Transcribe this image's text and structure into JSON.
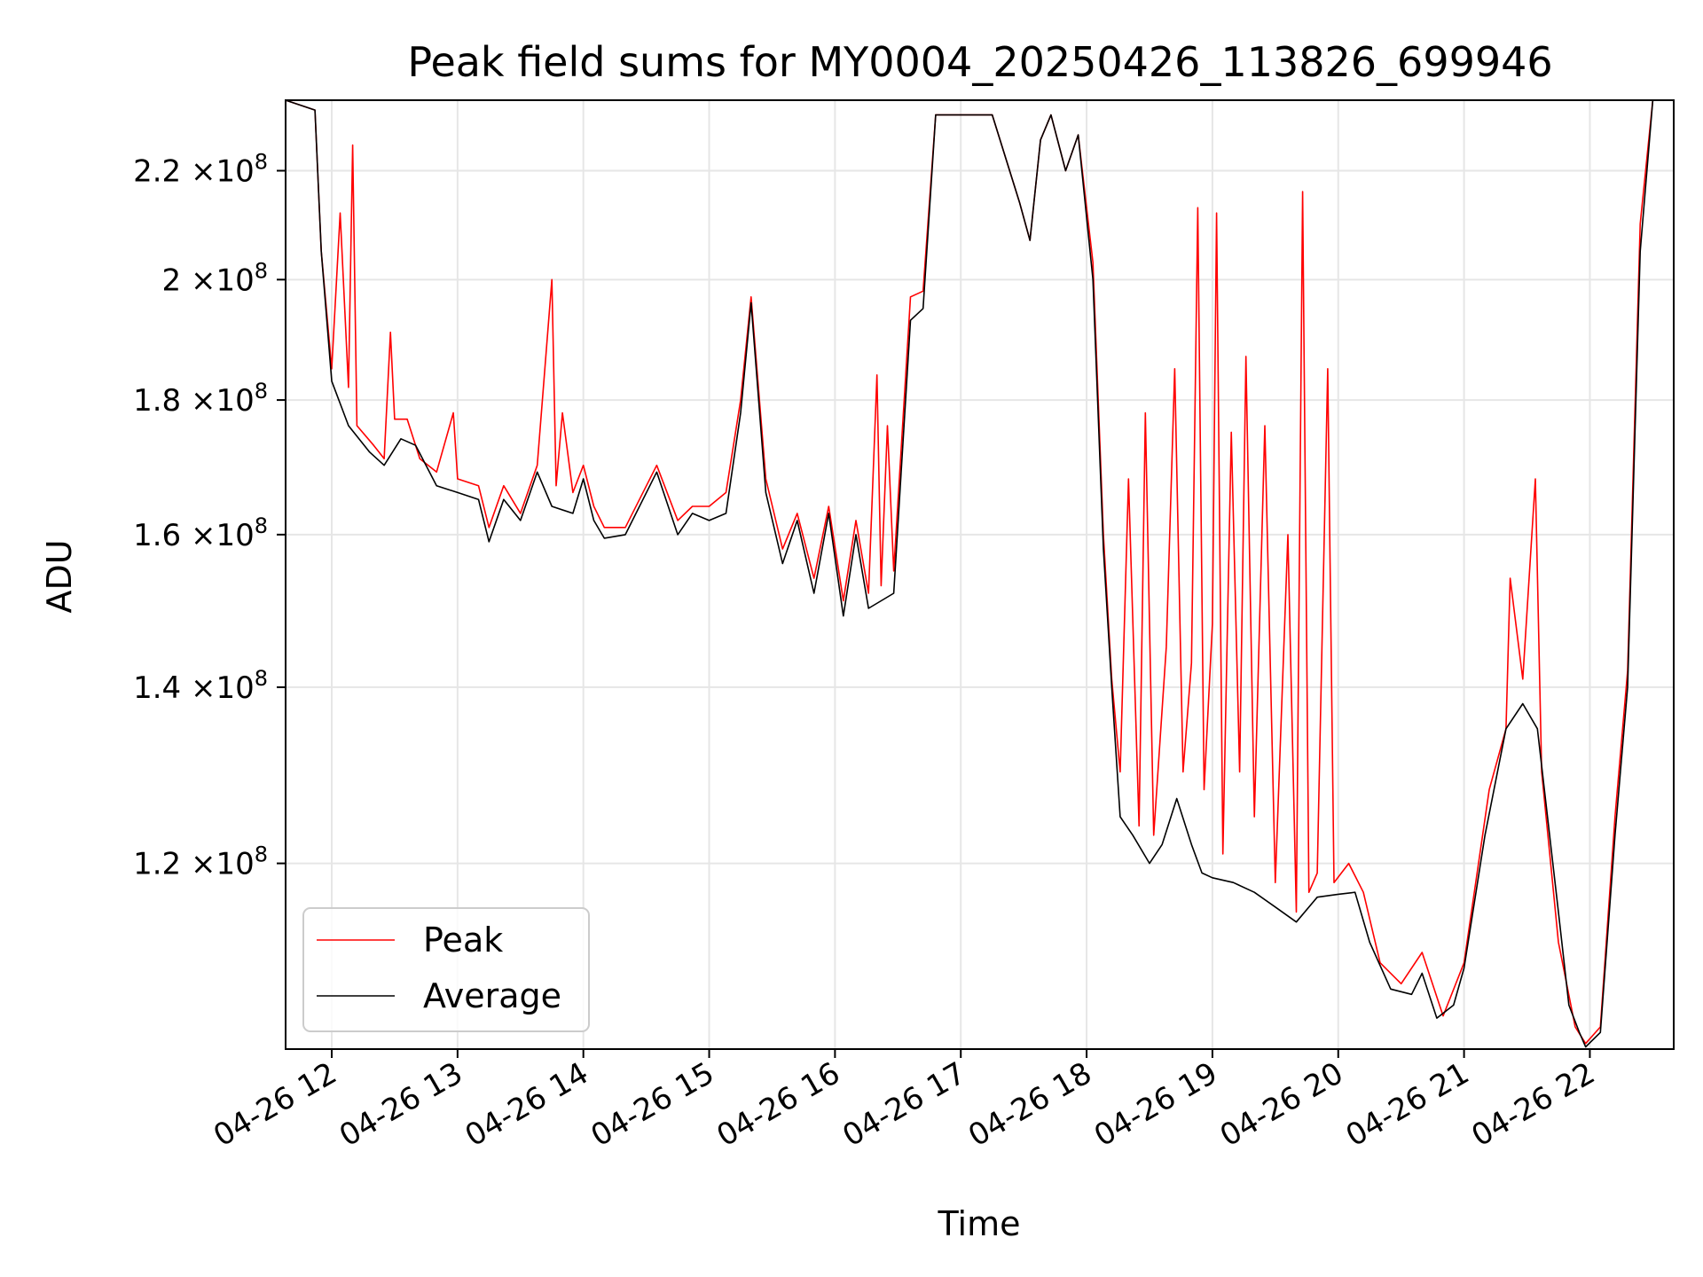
{
  "chart_data": {
    "type": "line",
    "title": "Peak field sums for MY0004_20250426_113826_699946",
    "xlabel": "Time",
    "ylabel": "ADU",
    "yscale": "log",
    "grid": true,
    "legend_position": "lower-left",
    "xlim": [
      "2025-04-26 11:38",
      "2025-04-26 22:40"
    ],
    "ylim": [
      102000000,
      234000000
    ],
    "x_ticks": [
      {
        "value": "2025-04-26 12:00",
        "label": "04-26 12"
      },
      {
        "value": "2025-04-26 13:00",
        "label": "04-26 13"
      },
      {
        "value": "2025-04-26 14:00",
        "label": "04-26 14"
      },
      {
        "value": "2025-04-26 15:00",
        "label": "04-26 15"
      },
      {
        "value": "2025-04-26 16:00",
        "label": "04-26 16"
      },
      {
        "value": "2025-04-26 17:00",
        "label": "04-26 17"
      },
      {
        "value": "2025-04-26 18:00",
        "label": "04-26 18"
      },
      {
        "value": "2025-04-26 19:00",
        "label": "04-26 19"
      },
      {
        "value": "2025-04-26 20:00",
        "label": "04-26 20"
      },
      {
        "value": "2025-04-26 21:00",
        "label": "04-26 21"
      },
      {
        "value": "2025-04-26 22:00",
        "label": "04-26 22"
      }
    ],
    "y_ticks": [
      {
        "value": 120000000,
        "mantissa": "1.2",
        "exponent": "8"
      },
      {
        "value": 140000000,
        "mantissa": "1.4",
        "exponent": "8"
      },
      {
        "value": 160000000,
        "mantissa": "1.6",
        "exponent": "8"
      },
      {
        "value": 180000000,
        "mantissa": "1.8",
        "exponent": "8"
      },
      {
        "value": 200000000,
        "mantissa": "2",
        "exponent": "8"
      },
      {
        "value": 220000000,
        "mantissa": "2.2",
        "exponent": "8"
      }
    ],
    "tick_times_label": "×10",
    "series": [
      {
        "name": "Peak",
        "color": "#ff0000",
        "points": [
          [
            "2025-04-26 11:38",
            234000000
          ],
          [
            "2025-04-26 11:52",
            232000000
          ],
          [
            "2025-04-26 11:55",
            205000000
          ],
          [
            "2025-04-26 12:00",
            185000000
          ],
          [
            "2025-04-26 12:04",
            212000000
          ],
          [
            "2025-04-26 12:08",
            182000000
          ],
          [
            "2025-04-26 12:10",
            225000000
          ],
          [
            "2025-04-26 12:12",
            176000000
          ],
          [
            "2025-04-26 12:20",
            173000000
          ],
          [
            "2025-04-26 12:25",
            171000000
          ],
          [
            "2025-04-26 12:28",
            191000000
          ],
          [
            "2025-04-26 12:30",
            177000000
          ],
          [
            "2025-04-26 12:36",
            177000000
          ],
          [
            "2025-04-26 12:42",
            171000000
          ],
          [
            "2025-04-26 12:50",
            169000000
          ],
          [
            "2025-04-26 12:58",
            178000000
          ],
          [
            "2025-04-26 13:00",
            168000000
          ],
          [
            "2025-04-26 13:10",
            167000000
          ],
          [
            "2025-04-26 13:15",
            161000000
          ],
          [
            "2025-04-26 13:22",
            167000000
          ],
          [
            "2025-04-26 13:30",
            163000000
          ],
          [
            "2025-04-26 13:38",
            170000000
          ],
          [
            "2025-04-26 13:45",
            200000000
          ],
          [
            "2025-04-26 13:47",
            167000000
          ],
          [
            "2025-04-26 13:50",
            178000000
          ],
          [
            "2025-04-26 13:55",
            166000000
          ],
          [
            "2025-04-26 14:00",
            170000000
          ],
          [
            "2025-04-26 14:05",
            164000000
          ],
          [
            "2025-04-26 14:10",
            161000000
          ],
          [
            "2025-04-26 14:20",
            161000000
          ],
          [
            "2025-04-26 14:35",
            170000000
          ],
          [
            "2025-04-26 14:45",
            162000000
          ],
          [
            "2025-04-26 14:52",
            164000000
          ],
          [
            "2025-04-26 15:00",
            164000000
          ],
          [
            "2025-04-26 15:08",
            166000000
          ],
          [
            "2025-04-26 15:15",
            180000000
          ],
          [
            "2025-04-26 15:20",
            197000000
          ],
          [
            "2025-04-26 15:27",
            168000000
          ],
          [
            "2025-04-26 15:35",
            158000000
          ],
          [
            "2025-04-26 15:42",
            163000000
          ],
          [
            "2025-04-26 15:50",
            154000000
          ],
          [
            "2025-04-26 15:57",
            164000000
          ],
          [
            "2025-04-26 16:04",
            151000000
          ],
          [
            "2025-04-26 16:10",
            162000000
          ],
          [
            "2025-04-26 16:16",
            152000000
          ],
          [
            "2025-04-26 16:20",
            184000000
          ],
          [
            "2025-04-26 16:22",
            153000000
          ],
          [
            "2025-04-26 16:25",
            176000000
          ],
          [
            "2025-04-26 16:28",
            155000000
          ],
          [
            "2025-04-26 16:36",
            197000000
          ],
          [
            "2025-04-26 16:42",
            198000000
          ],
          [
            "2025-04-26 16:48",
            231000000
          ],
          [
            "2025-04-26 17:15",
            231000000
          ],
          [
            "2025-04-26 17:28",
            214000000
          ],
          [
            "2025-04-26 17:33",
            207000000
          ],
          [
            "2025-04-26 17:38",
            226000000
          ],
          [
            "2025-04-26 17:43",
            231000000
          ],
          [
            "2025-04-26 17:50",
            220000000
          ],
          [
            "2025-04-26 17:56",
            227000000
          ],
          [
            "2025-04-26 18:03",
            203000000
          ],
          [
            "2025-04-26 18:08",
            160000000
          ],
          [
            "2025-04-26 18:12",
            141000000
          ],
          [
            "2025-04-26 18:16",
            130000000
          ],
          [
            "2025-04-26 18:20",
            168000000
          ],
          [
            "2025-04-26 18:25",
            124000000
          ],
          [
            "2025-04-26 18:28",
            178000000
          ],
          [
            "2025-04-26 18:32",
            123000000
          ],
          [
            "2025-04-26 18:38",
            145000000
          ],
          [
            "2025-04-26 18:42",
            185000000
          ],
          [
            "2025-04-26 18:46",
            130000000
          ],
          [
            "2025-04-26 18:50",
            143000000
          ],
          [
            "2025-04-26 18:53",
            213000000
          ],
          [
            "2025-04-26 18:56",
            128000000
          ],
          [
            "2025-04-26 19:00",
            148000000
          ],
          [
            "2025-04-26 19:02",
            212000000
          ],
          [
            "2025-04-26 19:05",
            121000000
          ],
          [
            "2025-04-26 19:09",
            175000000
          ],
          [
            "2025-04-26 19:13",
            130000000
          ],
          [
            "2025-04-26 19:16",
            187000000
          ],
          [
            "2025-04-26 19:20",
            125000000
          ],
          [
            "2025-04-26 19:25",
            176000000
          ],
          [
            "2025-04-26 19:30",
            118000000
          ],
          [
            "2025-04-26 19:36",
            160000000
          ],
          [
            "2025-04-26 19:40",
            115000000
          ],
          [
            "2025-04-26 19:43",
            216000000
          ],
          [
            "2025-04-26 19:46",
            117000000
          ],
          [
            "2025-04-26 19:50",
            119000000
          ],
          [
            "2025-04-26 19:55",
            185000000
          ],
          [
            "2025-04-26 19:58",
            118000000
          ],
          [
            "2025-04-26 20:05",
            120000000
          ],
          [
            "2025-04-26 20:12",
            117000000
          ],
          [
            "2025-04-26 20:20",
            110000000
          ],
          [
            "2025-04-26 20:30",
            108000000
          ],
          [
            "2025-04-26 20:40",
            111000000
          ],
          [
            "2025-04-26 20:50",
            105000000
          ],
          [
            "2025-04-26 21:00",
            110000000
          ],
          [
            "2025-04-26 21:12",
            128000000
          ],
          [
            "2025-04-26 21:20",
            135000000
          ],
          [
            "2025-04-26 21:22",
            154000000
          ],
          [
            "2025-04-26 21:28",
            141000000
          ],
          [
            "2025-04-26 21:34",
            168000000
          ],
          [
            "2025-04-26 21:37",
            130000000
          ],
          [
            "2025-04-26 21:45",
            112000000
          ],
          [
            "2025-04-26 21:53",
            104000000
          ],
          [
            "2025-04-26 21:58",
            102500000
          ],
          [
            "2025-04-26 22:05",
            104000000
          ],
          [
            "2025-04-26 22:12",
            125000000
          ],
          [
            "2025-04-26 22:18",
            142000000
          ],
          [
            "2025-04-26 22:24",
            210000000
          ],
          [
            "2025-04-26 22:30",
            234000000
          ],
          [
            "2025-04-26 22:40",
            234000000
          ]
        ]
      },
      {
        "name": "Average",
        "color": "#000000",
        "points": [
          [
            "2025-04-26 11:38",
            234000000
          ],
          [
            "2025-04-26 11:52",
            232000000
          ],
          [
            "2025-04-26 11:55",
            205000000
          ],
          [
            "2025-04-26 12:00",
            183000000
          ],
          [
            "2025-04-26 12:08",
            176000000
          ],
          [
            "2025-04-26 12:18",
            172000000
          ],
          [
            "2025-04-26 12:25",
            170000000
          ],
          [
            "2025-04-26 12:33",
            174000000
          ],
          [
            "2025-04-26 12:40",
            173000000
          ],
          [
            "2025-04-26 12:50",
            167000000
          ],
          [
            "2025-04-26 13:00",
            166000000
          ],
          [
            "2025-04-26 13:10",
            165000000
          ],
          [
            "2025-04-26 13:15",
            159000000
          ],
          [
            "2025-04-26 13:22",
            165000000
          ],
          [
            "2025-04-26 13:30",
            162000000
          ],
          [
            "2025-04-26 13:38",
            169000000
          ],
          [
            "2025-04-26 13:45",
            164000000
          ],
          [
            "2025-04-26 13:55",
            163000000
          ],
          [
            "2025-04-26 14:00",
            168000000
          ],
          [
            "2025-04-26 14:05",
            162000000
          ],
          [
            "2025-04-26 14:10",
            159500000
          ],
          [
            "2025-04-26 14:20",
            160000000
          ],
          [
            "2025-04-26 14:35",
            169000000
          ],
          [
            "2025-04-26 14:45",
            160000000
          ],
          [
            "2025-04-26 14:52",
            163000000
          ],
          [
            "2025-04-26 15:00",
            162000000
          ],
          [
            "2025-04-26 15:08",
            163000000
          ],
          [
            "2025-04-26 15:15",
            178000000
          ],
          [
            "2025-04-26 15:20",
            196000000
          ],
          [
            "2025-04-26 15:27",
            166000000
          ],
          [
            "2025-04-26 15:35",
            156000000
          ],
          [
            "2025-04-26 15:42",
            162000000
          ],
          [
            "2025-04-26 15:50",
            152000000
          ],
          [
            "2025-04-26 15:57",
            163000000
          ],
          [
            "2025-04-26 16:04",
            149000000
          ],
          [
            "2025-04-26 16:10",
            160000000
          ],
          [
            "2025-04-26 16:16",
            150000000
          ],
          [
            "2025-04-26 16:28",
            152000000
          ],
          [
            "2025-04-26 16:36",
            193000000
          ],
          [
            "2025-04-26 16:42",
            195000000
          ],
          [
            "2025-04-26 16:48",
            231000000
          ],
          [
            "2025-04-26 17:15",
            231000000
          ],
          [
            "2025-04-26 17:28",
            214000000
          ],
          [
            "2025-04-26 17:33",
            207000000
          ],
          [
            "2025-04-26 17:38",
            226000000
          ],
          [
            "2025-04-26 17:43",
            231000000
          ],
          [
            "2025-04-26 17:50",
            220000000
          ],
          [
            "2025-04-26 17:56",
            227000000
          ],
          [
            "2025-04-26 18:03",
            200000000
          ],
          [
            "2025-04-26 18:08",
            158000000
          ],
          [
            "2025-04-26 18:12",
            140000000
          ],
          [
            "2025-04-26 18:16",
            125000000
          ],
          [
            "2025-04-26 18:22",
            123000000
          ],
          [
            "2025-04-26 18:30",
            120000000
          ],
          [
            "2025-04-26 18:36",
            122000000
          ],
          [
            "2025-04-26 18:43",
            127000000
          ],
          [
            "2025-04-26 18:50",
            122000000
          ],
          [
            "2025-04-26 18:55",
            119000000
          ],
          [
            "2025-04-26 19:00",
            118500000
          ],
          [
            "2025-04-26 19:10",
            118000000
          ],
          [
            "2025-04-26 19:20",
            117000000
          ],
          [
            "2025-04-26 19:30",
            115500000
          ],
          [
            "2025-04-26 19:40",
            114000000
          ],
          [
            "2025-04-26 19:50",
            116500000
          ],
          [
            "2025-04-26 20:00",
            116800000
          ],
          [
            "2025-04-26 20:08",
            117000000
          ],
          [
            "2025-04-26 20:15",
            112000000
          ],
          [
            "2025-04-26 20:25",
            107500000
          ],
          [
            "2025-04-26 20:35",
            107000000
          ],
          [
            "2025-04-26 20:40",
            109000000
          ],
          [
            "2025-04-26 20:47",
            104800000
          ],
          [
            "2025-04-26 20:55",
            106000000
          ],
          [
            "2025-04-26 21:00",
            109500000
          ],
          [
            "2025-04-26 21:10",
            123000000
          ],
          [
            "2025-04-26 21:20",
            135000000
          ],
          [
            "2025-04-26 21:28",
            138000000
          ],
          [
            "2025-04-26 21:35",
            135000000
          ],
          [
            "2025-04-26 21:45",
            115000000
          ],
          [
            "2025-04-26 21:50",
            106000000
          ],
          [
            "2025-04-26 21:55",
            103500000
          ],
          [
            "2025-04-26 21:58",
            102200000
          ],
          [
            "2025-04-26 22:05",
            103500000
          ],
          [
            "2025-04-26 22:12",
            123000000
          ],
          [
            "2025-04-26 22:18",
            140000000
          ],
          [
            "2025-04-26 22:24",
            205000000
          ],
          [
            "2025-04-26 22:30",
            234000000
          ],
          [
            "2025-04-26 22:40",
            234000000
          ]
        ]
      }
    ]
  }
}
